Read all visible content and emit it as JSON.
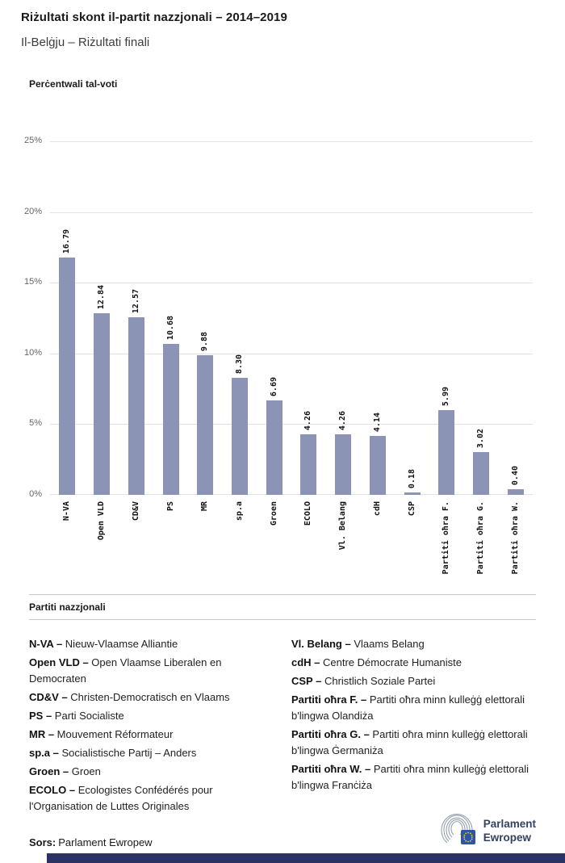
{
  "header": {
    "title": "Riżultati skont il-partit nazzjonali – 2014–2019",
    "subtitle": "Il-Belġju – Riżultati finali"
  },
  "chart_data": {
    "type": "bar",
    "title": "Perċentwali tal-voti",
    "categories": [
      "N-VA",
      "Open VLD",
      "CD&V",
      "PS",
      "MR",
      "sp.a",
      "Groen",
      "ECOLO",
      "Vl. Belang",
      "cdH",
      "CSP",
      "Partiti oħra F.",
      "Partiti oħra G.",
      "Partiti oħra W."
    ],
    "values": [
      16.79,
      12.84,
      12.57,
      10.68,
      9.88,
      8.3,
      6.69,
      4.26,
      4.26,
      4.14,
      0.18,
      5.99,
      3.02,
      0.4
    ],
    "ylim": [
      0,
      25
    ],
    "y_tick_values": [
      0,
      5,
      10,
      15,
      20,
      25
    ],
    "y_tick_labels": [
      "0%",
      "5%",
      "10%",
      "15%",
      "20%",
      "25%"
    ],
    "grid": true,
    "bar_color": "#8b94b5",
    "xlabel": "",
    "ylabel": "Perċentwali tal-voti",
    "legend_position": "none"
  },
  "legend": {
    "title": "Partiti nazzjonali",
    "columns": [
      [
        {
          "term": "N-VA –",
          "desc": "Nieuw-Vlaamse Alliantie"
        },
        {
          "term": "Open VLD –",
          "desc": "Open Vlaamse Liberalen en Democraten"
        },
        {
          "term": "CD&V –",
          "desc": "Christen-Democratisch en Vlaams"
        },
        {
          "term": "PS –",
          "desc": "Parti Socialiste"
        },
        {
          "term": "MR –",
          "desc": "Mouvement Réformateur"
        },
        {
          "term": "sp.a –",
          "desc": "Socialistische Partij – Anders"
        },
        {
          "term": "Groen –",
          "desc": "Groen"
        },
        {
          "term": "ECOLO –",
          "desc": "Ecologistes Confédérés pour l'Organisation de Luttes Originales"
        }
      ],
      [
        {
          "term": "Vl. Belang –",
          "desc": "Vlaams Belang"
        },
        {
          "term": "cdH –",
          "desc": "Centre Démocrate Humaniste"
        },
        {
          "term": "CSP –",
          "desc": "Christlich Soziale Partei"
        },
        {
          "term": "Partiti oħra F. –",
          "desc": "Partiti oħra minn kulleġġ elettorali b'lingwa Olandiża"
        },
        {
          "term": "Partiti oħra G. –",
          "desc": "Partiti oħra minn kulleġġ elettorali b'lingwa Ġermaniża"
        },
        {
          "term": "Partiti oħra W. –",
          "desc": "Partiti oħra minn kulleġġ elettorali b'lingwa Franċiża"
        }
      ]
    ]
  },
  "footer": {
    "source_label": "Sors:",
    "source_value": "Parlament Ewropew",
    "logo_line1": "Parlament",
    "logo_line2": "Ewropew"
  },
  "colors": {
    "bar": "#8b94b5",
    "bottom_bar": "#2b3364",
    "gridline": "#e2e2e2",
    "logo_text": "#33415f"
  }
}
